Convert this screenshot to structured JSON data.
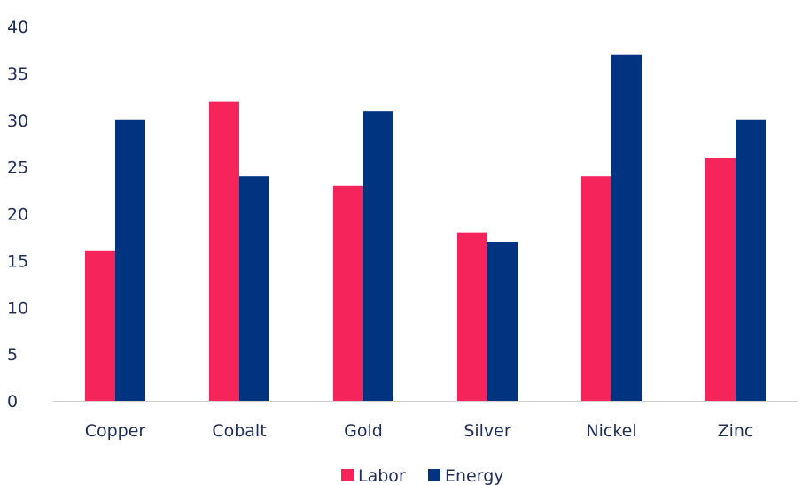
{
  "chart_data": {
    "type": "bar",
    "title": "",
    "xlabel": "",
    "ylabel": "",
    "categories": [
      "Copper",
      "Cobalt",
      "Gold",
      "Silver",
      "Nickel",
      "Zinc"
    ],
    "series": [
      {
        "name": "Labor",
        "color": "#f5245b",
        "values": [
          16,
          32,
          23,
          18,
          24,
          26
        ]
      },
      {
        "name": "Energy",
        "color": "#003380",
        "values": [
          30,
          24,
          31,
          17,
          37,
          30
        ]
      }
    ],
    "ylim": [
      0,
      40
    ],
    "yticks": [
      "0",
      "5",
      "10",
      "15",
      "20",
      "25",
      "30",
      "35",
      "40"
    ],
    "grid": false,
    "legend": "bottom-center"
  }
}
